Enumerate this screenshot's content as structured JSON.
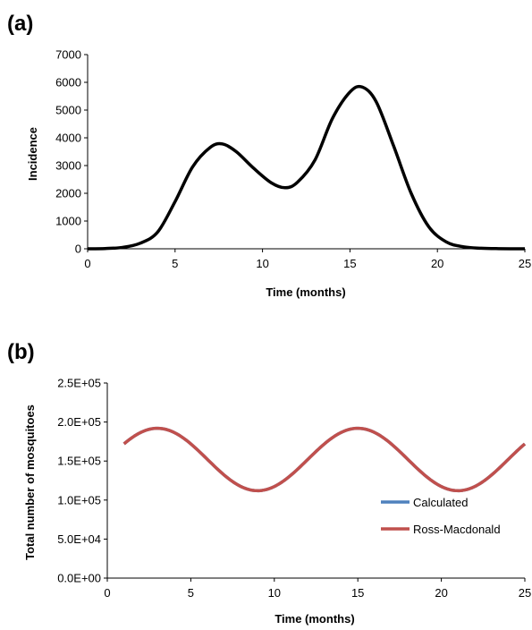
{
  "chart_data": [
    {
      "panel_label": "(a)",
      "type": "line",
      "xlabel": "Time (months)",
      "ylabel": "Incidence",
      "xlim": [
        0,
        25
      ],
      "ylim": [
        0,
        7000
      ],
      "xticks": [
        "0",
        "5",
        "10",
        "15",
        "20",
        "25"
      ],
      "yticks": [
        "0",
        "1000",
        "2000",
        "3000",
        "4000",
        "5000",
        "6000",
        "7000"
      ],
      "grid": false,
      "series": [
        {
          "color": "#000000",
          "x": [
            0,
            1,
            2,
            3,
            4,
            5,
            6,
            7,
            7.7,
            8.5,
            9.5,
            10.5,
            11.3,
            12,
            13,
            14,
            15,
            15.7,
            16.5,
            17.5,
            18.5,
            19.5,
            20.5,
            21.5,
            22.5,
            23.5,
            25
          ],
          "y": [
            0,
            10,
            50,
            200,
            600,
            1700,
            2950,
            3650,
            3780,
            3500,
            2900,
            2380,
            2200,
            2400,
            3200,
            4700,
            5650,
            5830,
            5300,
            3700,
            2000,
            800,
            250,
            70,
            20,
            5,
            0
          ]
        }
      ]
    },
    {
      "panel_label": "(b)",
      "type": "line",
      "xlabel": "Time (months)",
      "ylabel": "Total number of mosquitoes",
      "xlim": [
        0,
        25
      ],
      "ylim": [
        0,
        250000
      ],
      "xticks": [
        "0",
        "5",
        "10",
        "15",
        "20",
        "25"
      ],
      "yticks": [
        "0.0E+00",
        "5.0E+04",
        "1.0E+05",
        "1.5E+05",
        "2.0E+05",
        "2.5E+05"
      ],
      "grid": false,
      "legend": "right",
      "series": [
        {
          "name": "Calculated",
          "color": "#4F81BD",
          "x_start": 1,
          "x_end": 25,
          "mean": 152000,
          "amplitude": 40000,
          "period_months": 12,
          "peak_month": 3
        },
        {
          "name": "Ross-Macdonald",
          "color": "#C0504D",
          "x_start": 1,
          "x_end": 25,
          "mean": 152000,
          "amplitude": 40000,
          "period_months": 12,
          "peak_month": 3
        }
      ]
    }
  ]
}
